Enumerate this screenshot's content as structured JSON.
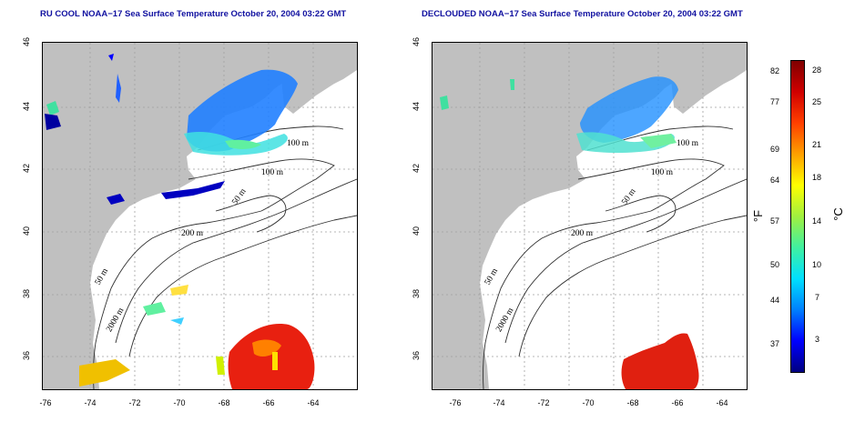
{
  "panels": [
    {
      "title": "RU COOL NOAA−17 Sea Surface Temperature October 20, 2004 03:22 GMT",
      "lon_ticks": [
        "-76",
        "-74",
        "-72",
        "-70",
        "-68",
        "-66",
        "-64"
      ],
      "lat_ticks": [
        "46",
        "44",
        "42",
        "40",
        "38",
        "36"
      ],
      "contour_labels": [
        "100 m",
        "100 m",
        "50 m",
        "200 m",
        "50 m",
        "2000 m"
      ]
    },
    {
      "title": "DECLOUDED NOAA−17 Sea Surface Temperature October 20, 2004 03:22 GMT",
      "lon_ticks": [
        "-76",
        "-74",
        "-72",
        "-70",
        "-68",
        "-66",
        "-64"
      ],
      "lat_ticks": [
        "46",
        "44",
        "42",
        "40",
        "38",
        "36"
      ],
      "contour_labels": [
        "100 m",
        "100 m",
        "50 m",
        "200 m",
        "50 m",
        "2000 m"
      ]
    }
  ],
  "colorbar": {
    "fahrenheit_ticks": [
      "82",
      "77",
      "69",
      "64",
      "57",
      "50",
      "44",
      "37"
    ],
    "celsius_ticks": [
      "28",
      "25",
      "21",
      "18",
      "14",
      "10",
      "7",
      "3"
    ],
    "fahrenheit_unit": "°F",
    "celsius_unit": "°C",
    "colors": [
      "#000080",
      "#0000ff",
      "#0080ff",
      "#00e0ff",
      "#40f0a0",
      "#a0f040",
      "#ffff00",
      "#ffa000",
      "#ff4000",
      "#d00000",
      "#800000"
    ]
  },
  "colors": {
    "land": "#c0c0c0",
    "ocean": "#ffffff",
    "grid": "#a0a0a0",
    "title": "#1010a0"
  }
}
